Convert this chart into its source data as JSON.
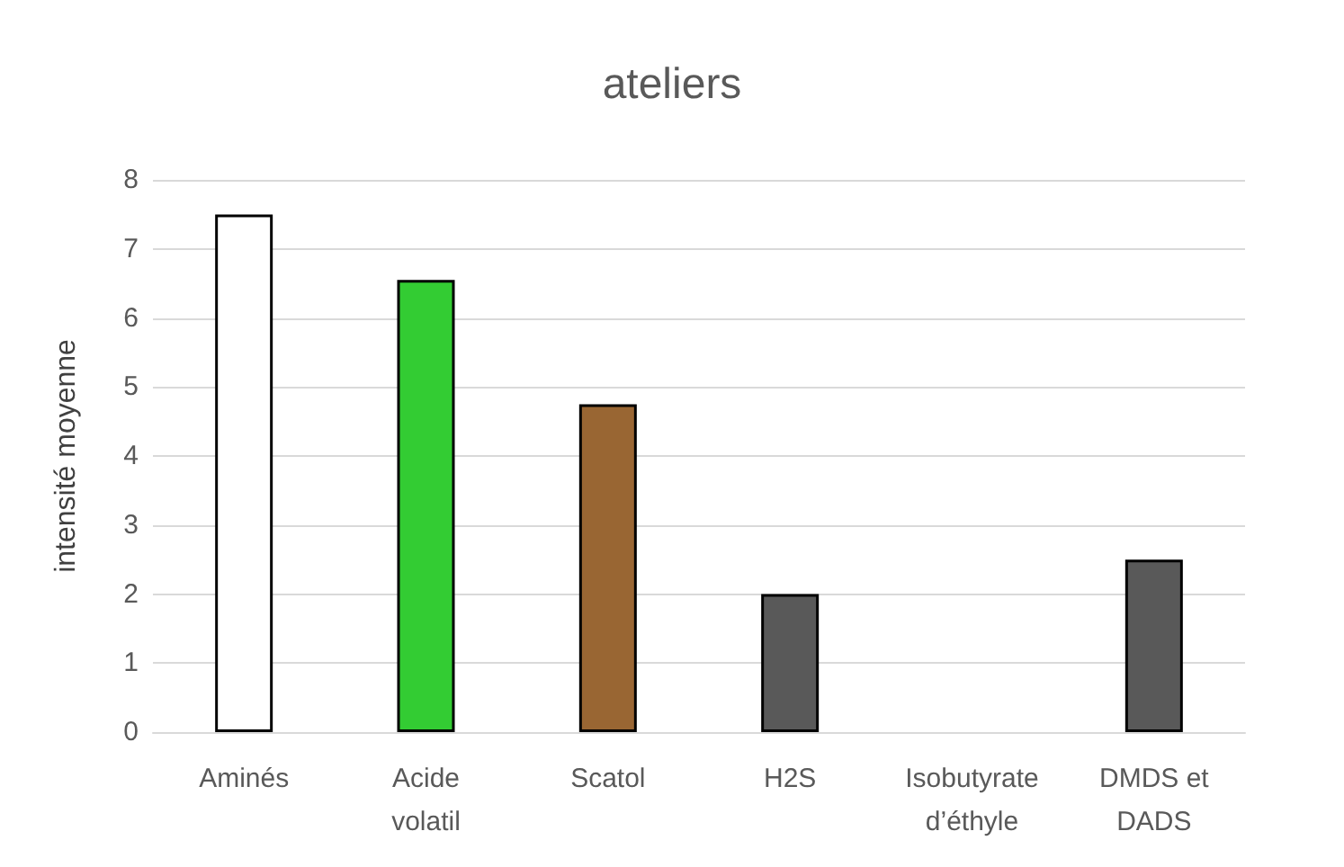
{
  "chart_data": {
    "type": "bar",
    "title": "ateliers",
    "ylabel": "intensité moyenne",
    "categories": [
      "Aminés",
      "Acide\nvolatil",
      "Scatol",
      "H2S",
      "Isobutyrate\nd’éthyle",
      "DMDS et\nDADS"
    ],
    "values": [
      7.5,
      6.55,
      4.75,
      2,
      0,
      2.5
    ],
    "colors": [
      "#ffffff",
      "#33cc33",
      "#996633",
      "#595959",
      "#595959",
      "#595959"
    ],
    "ylim": [
      0,
      8
    ],
    "yticks": [
      0,
      1,
      2,
      3,
      4,
      5,
      6,
      7,
      8
    ],
    "grid": "y"
  }
}
